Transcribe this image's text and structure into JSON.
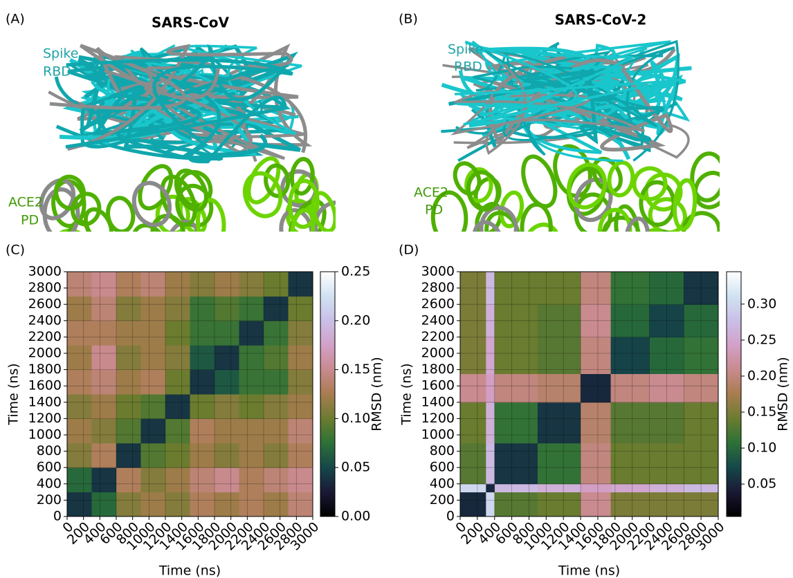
{
  "panels": [
    {
      "label": "(A)",
      "title": "SARS-CoV",
      "rbd_label": [
        "Spike",
        "RBD"
      ],
      "ace2_label": [
        "ACE2",
        "PD"
      ]
    },
    {
      "label": "(B)",
      "title": "SARS-CoV-2",
      "rbd_label": [
        "Spike",
        "RBD"
      ],
      "ace2_label": [
        "ACE2",
        "PD"
      ]
    }
  ],
  "chart_data": [
    {
      "type": "heatmap",
      "panel_label": "(C)",
      "xlabel": "Time (ns)",
      "ylabel": "Time (ns)",
      "colorbar_label": "RMSD (nm)",
      "colormap": "cubehelix",
      "grid": true,
      "x_bins": [
        0,
        300,
        600,
        900,
        1200,
        1500,
        1800,
        2100,
        2400,
        2700,
        3000
      ],
      "y_bins": [
        0,
        300,
        600,
        900,
        1200,
        1500,
        1800,
        2100,
        2400,
        2700,
        3000
      ],
      "z": [
        [
          0.04,
          0.07,
          0.11,
          0.12,
          0.11,
          0.13,
          0.12,
          0.13,
          0.12,
          0.14
        ],
        [
          0.07,
          0.04,
          0.13,
          0.11,
          0.12,
          0.14,
          0.15,
          0.13,
          0.14,
          0.15
        ],
        [
          0.11,
          0.13,
          0.04,
          0.09,
          0.1,
          0.12,
          0.11,
          0.12,
          0.11,
          0.13
        ],
        [
          0.12,
          0.11,
          0.09,
          0.04,
          0.09,
          0.13,
          0.12,
          0.12,
          0.12,
          0.14
        ],
        [
          0.11,
          0.12,
          0.1,
          0.09,
          0.04,
          0.1,
          0.11,
          0.1,
          0.11,
          0.12
        ],
        [
          0.13,
          0.14,
          0.12,
          0.13,
          0.1,
          0.04,
          0.06,
          0.08,
          0.08,
          0.11
        ],
        [
          0.12,
          0.15,
          0.11,
          0.12,
          0.11,
          0.06,
          0.04,
          0.08,
          0.09,
          0.12
        ],
        [
          0.13,
          0.13,
          0.12,
          0.12,
          0.1,
          0.08,
          0.08,
          0.04,
          0.08,
          0.11
        ],
        [
          0.12,
          0.14,
          0.11,
          0.12,
          0.11,
          0.08,
          0.09,
          0.08,
          0.04,
          0.1
        ],
        [
          0.14,
          0.15,
          0.13,
          0.14,
          0.12,
          0.11,
          0.12,
          0.11,
          0.1,
          0.04
        ]
      ],
      "xlim": [
        0,
        3000
      ],
      "ylim": [
        0,
        3000
      ],
      "xticks": [
        0,
        200,
        400,
        600,
        800,
        1000,
        1200,
        1400,
        1600,
        1800,
        2000,
        2200,
        2400,
        2600,
        2800,
        3000
      ],
      "yticks": [
        0,
        200,
        400,
        600,
        800,
        1000,
        1200,
        1400,
        1600,
        1800,
        2000,
        2200,
        2400,
        2600,
        2800,
        3000
      ],
      "clim": [
        0,
        0.25
      ],
      "cticks": [
        {
          "value": 0,
          "label": "0.00"
        },
        0.05,
        {
          "value": 0.1,
          "label": "0.10"
        },
        0.15,
        {
          "value": 0.2,
          "label": "0.20"
        },
        0.25
      ]
    },
    {
      "type": "heatmap",
      "panel_label": "(D)",
      "xlabel": "Time (ns)",
      "ylabel": "Time (ns)",
      "colorbar_label": "RMSD (nm)",
      "colormap": "cubehelix",
      "grid": true,
      "x_bins": [
        0,
        300,
        400,
        900,
        1400,
        1750,
        2200,
        2600,
        3000
      ],
      "y_bins": [
        0,
        300,
        400,
        900,
        1400,
        1750,
        2200,
        2600,
        3000
      ],
      "z": [
        [
          0.05,
          0.3,
          0.13,
          0.14,
          0.21,
          0.15,
          0.15,
          0.15
        ],
        [
          0.3,
          0.05,
          0.27,
          0.26,
          0.24,
          0.25,
          0.26,
          0.27
        ],
        [
          0.13,
          0.27,
          0.06,
          0.11,
          0.2,
          0.14,
          0.14,
          0.14
        ],
        [
          0.14,
          0.26,
          0.11,
          0.06,
          0.19,
          0.13,
          0.13,
          0.14
        ],
        [
          0.21,
          0.24,
          0.2,
          0.19,
          0.05,
          0.2,
          0.21,
          0.2
        ],
        [
          0.15,
          0.25,
          0.14,
          0.13,
          0.2,
          0.07,
          0.1,
          0.11
        ],
        [
          0.15,
          0.26,
          0.14,
          0.13,
          0.21,
          0.1,
          0.07,
          0.1
        ],
        [
          0.15,
          0.27,
          0.14,
          0.14,
          0.2,
          0.11,
          0.1,
          0.06
        ]
      ],
      "xlim": [
        0,
        3000
      ],
      "ylim": [
        0,
        3000
      ],
      "xticks": [
        0,
        200,
        400,
        600,
        800,
        1000,
        1200,
        1400,
        1600,
        1800,
        2000,
        2200,
        2400,
        2600,
        2800,
        3000
      ],
      "yticks": [
        0,
        200,
        400,
        600,
        800,
        1000,
        1200,
        1400,
        1600,
        1800,
        2000,
        2200,
        2400,
        2600,
        2800,
        3000
      ],
      "clim": [
        0.005,
        0.345
      ],
      "cticks": [
        0.05,
        {
          "value": 0.1,
          "label": "0.10"
        },
        0.15,
        {
          "value": 0.2,
          "label": "0.20"
        },
        0.25,
        {
          "value": 0.3,
          "label": "0.30"
        }
      ]
    }
  ]
}
